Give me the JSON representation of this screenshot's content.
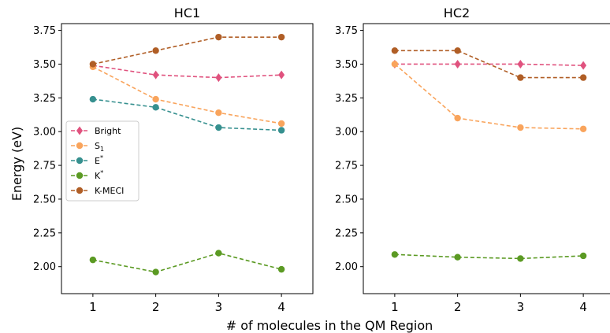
{
  "chart_data": {
    "type": "line",
    "x": [
      1,
      2,
      3,
      4
    ],
    "xlabel": "# of molecules in the QM Region",
    "ylabel": "Energy (eV)",
    "xlim": [
      0.5,
      4.5
    ],
    "ylim": [
      1.8,
      3.8
    ],
    "yticks": [
      "2.00",
      "2.25",
      "2.50",
      "2.75",
      "3.00",
      "3.25",
      "3.50",
      "3.75"
    ],
    "xticks": [
      "1",
      "2",
      "3",
      "4"
    ],
    "grid": false,
    "legend": {
      "panel": "HC1",
      "placement": "center-left"
    },
    "series_styles": [
      {
        "key": "bright",
        "color": "#e0527e",
        "marker": "diamond",
        "linestyle": "dashed"
      },
      {
        "key": "s1",
        "color": "#f9a45c",
        "marker": "circle",
        "linestyle": "dashed"
      },
      {
        "key": "estar",
        "color": "#36908f",
        "marker": "circle",
        "linestyle": "dashed"
      },
      {
        "key": "kstar",
        "color": "#5b9a23",
        "marker": "circle",
        "linestyle": "dashed"
      },
      {
        "key": "kmeci",
        "color": "#b05e26",
        "marker": "circle",
        "linestyle": "dashed"
      }
    ],
    "legend_entries": [
      {
        "key": "bright",
        "label": "Bright",
        "sub": "",
        "sup": ""
      },
      {
        "key": "s1",
        "label": "S",
        "sub": "1",
        "sup": ""
      },
      {
        "key": "estar",
        "label": "E",
        "sub": "",
        "sup": "*"
      },
      {
        "key": "kstar",
        "label": "K",
        "sub": "",
        "sup": "*"
      },
      {
        "key": "kmeci",
        "label": "K-MECI",
        "sub": "",
        "sup": ""
      }
    ],
    "panels": [
      {
        "title": "HC1",
        "series": [
          {
            "key": "bright",
            "values": [
              3.49,
              3.42,
              3.4,
              3.42
            ]
          },
          {
            "key": "s1",
            "values": [
              3.48,
              3.24,
              3.14,
              3.06
            ]
          },
          {
            "key": "estar",
            "values": [
              3.24,
              3.18,
              3.03,
              3.01
            ]
          },
          {
            "key": "kstar",
            "values": [
              2.05,
              1.96,
              2.1,
              1.98
            ]
          },
          {
            "key": "kmeci",
            "values": [
              3.5,
              3.6,
              3.7,
              3.7
            ]
          }
        ]
      },
      {
        "title": "HC2",
        "series": [
          {
            "key": "bright",
            "values": [
              3.5,
              3.5,
              3.5,
              3.49
            ]
          },
          {
            "key": "s1",
            "values": [
              3.5,
              3.1,
              3.03,
              3.02
            ]
          },
          {
            "key": "kstar",
            "values": [
              2.09,
              2.07,
              2.06,
              2.08
            ]
          },
          {
            "key": "kmeci",
            "values": [
              3.6,
              3.6,
              3.4,
              3.4
            ]
          }
        ]
      }
    ]
  }
}
